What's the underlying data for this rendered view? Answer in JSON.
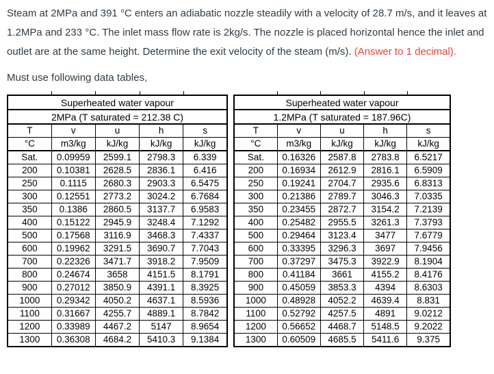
{
  "problem": {
    "text_main": "Steam at 2MPa and 391 °C enters an adiabatic nozzle steadily with a velocity of 28.7 m/s, and it leaves at 1.2MPa and 233 °C. The inlet mass flow rate is 2kg/s. The nozzle is placed horizontal hence the inlet and outlet are at the same height. Determine the exit velocity of the steam (m/s).",
    "answer_note": "(Answer to 1 decimal).",
    "instruction": "Must use following data tables,"
  },
  "colors": {
    "body_text": "#2d3b45",
    "answer_note_red": "#ee4037",
    "table_border": "#000000",
    "table_text": "#000000",
    "background": "#ffffff"
  },
  "tables": [
    {
      "title": "Superheated water vapour",
      "subtitle": "2MPa (T saturated = 212.38 C)",
      "columns": [
        "T",
        "v",
        "u",
        "h",
        "s"
      ],
      "units": [
        "°C",
        "m3/kg",
        "kJ/kg",
        "kJ/kg",
        "kJ/kg"
      ],
      "rows": [
        [
          "Sat.",
          "0.09959",
          "2599.1",
          "2798.3",
          "6.339"
        ],
        [
          "200",
          "0.10381",
          "2628.5",
          "2836.1",
          "6.416"
        ],
        [
          "250",
          "0.1115",
          "2680.3",
          "2903.3",
          "6.5475"
        ],
        [
          "300",
          "0.12551",
          "2773.2",
          "3024.2",
          "6.7684"
        ],
        [
          "350",
          "0.1386",
          "2860.5",
          "3137.7",
          "6.9583"
        ],
        [
          "400",
          "0.15122",
          "2945.9",
          "3248.4",
          "7.1292"
        ],
        [
          "500",
          "0.17568",
          "3116.9",
          "3468.3",
          "7.4337"
        ],
        [
          "600",
          "0.19962",
          "3291.5",
          "3690.7",
          "7.7043"
        ],
        [
          "700",
          "0.22326",
          "3471.7",
          "3918.2",
          "7.9509"
        ],
        [
          "800",
          "0.24674",
          "3658",
          "4151.5",
          "8.1791"
        ],
        [
          "900",
          "0.27012",
          "3850.9",
          "4391.1",
          "8.3925"
        ],
        [
          "1000",
          "0.29342",
          "4050.2",
          "4637.1",
          "8.5936"
        ],
        [
          "1100",
          "0.31667",
          "4255.7",
          "4889.1",
          "8.7842"
        ],
        [
          "1200",
          "0.33989",
          "4467.2",
          "5147",
          "8.9654"
        ],
        [
          "1300",
          "0.36308",
          "4684.2",
          "5410.3",
          "9.1384"
        ]
      ]
    },
    {
      "title": "Superheated water vapour",
      "subtitle": "1.2MPa (T saturated = 187.96C)",
      "columns": [
        "T",
        "v",
        "u",
        "h",
        "s"
      ],
      "units": [
        "°C",
        "m3/kg",
        "kJ/kg",
        "kJ/kg",
        "kJ/kg"
      ],
      "rows": [
        [
          "Sat.",
          "0.16326",
          "2587.8",
          "2783.8",
          "6.5217"
        ],
        [
          "200",
          "0.16934",
          "2612.9",
          "2816.1",
          "6.5909"
        ],
        [
          "250",
          "0.19241",
          "2704.7",
          "2935.6",
          "6.8313"
        ],
        [
          "300",
          "0.21386",
          "2789.7",
          "3046.3",
          "7.0335"
        ],
        [
          "350",
          "0.23455",
          "2872.7",
          "3154.2",
          "7.2139"
        ],
        [
          "400",
          "0.25482",
          "2955.5",
          "3261.3",
          "7.3793"
        ],
        [
          "500",
          "0.29464",
          "3123.4",
          "3477",
          "7.6779"
        ],
        [
          "600",
          "0.33395",
          "3296.3",
          "3697",
          "7.9456"
        ],
        [
          "700",
          "0.37297",
          "3475.3",
          "3922.9",
          "8.1904"
        ],
        [
          "800",
          "0.41184",
          "3661",
          "4155.2",
          "8.4176"
        ],
        [
          "900",
          "0.45059",
          "3853.3",
          "4394",
          "8.6303"
        ],
        [
          "1000",
          "0.48928",
          "4052.2",
          "4639.4",
          "8.831"
        ],
        [
          "1100",
          "0.52792",
          "4257.5",
          "4891",
          "9.0212"
        ],
        [
          "1200",
          "0.56652",
          "4468.7",
          "5148.5",
          "9.2022"
        ],
        [
          "1300",
          "0.60509",
          "4685.5",
          "5411.6",
          "9.375"
        ]
      ]
    }
  ]
}
